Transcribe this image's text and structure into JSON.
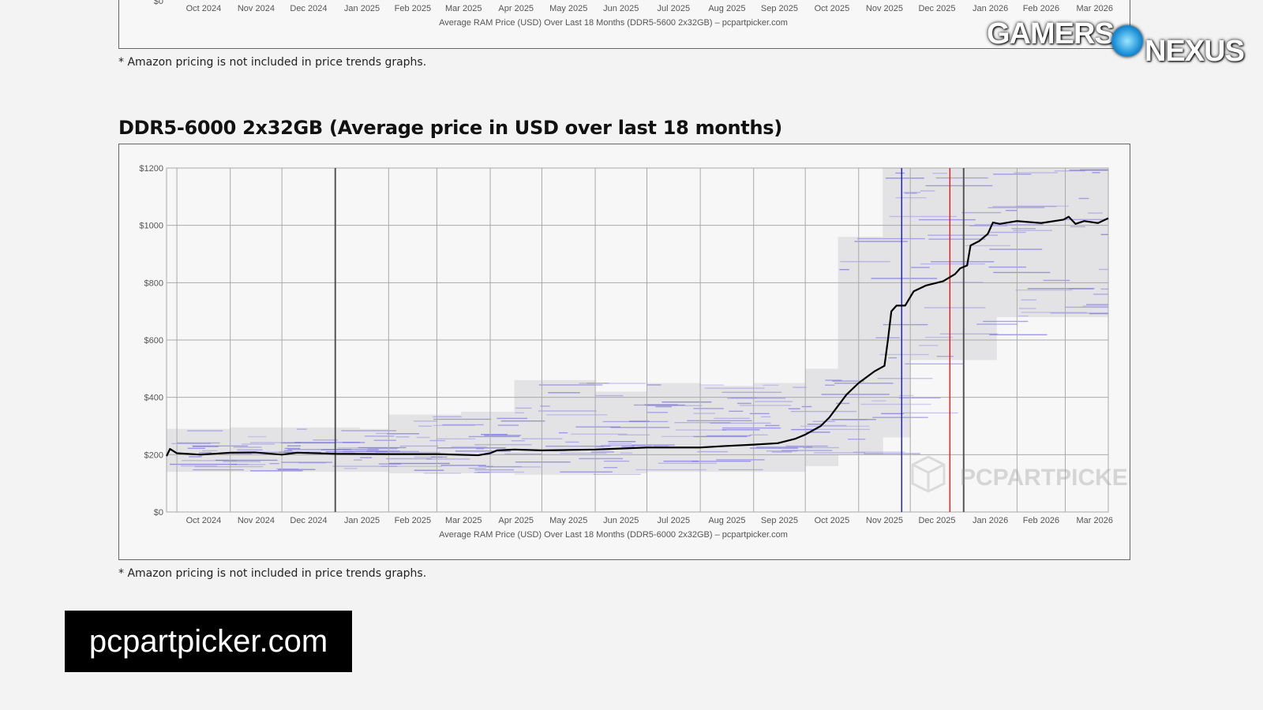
{
  "prev_chart": {
    "y_tick_visible": "$0",
    "x_ticks": [
      "Oct 2024",
      "Nov 2024",
      "Dec 2024",
      "Jan 2025",
      "Feb 2025",
      "Mar 2025",
      "Apr 2025",
      "May 2025",
      "Jun 2025",
      "Jul 2025",
      "Aug 2025",
      "Sep 2025",
      "Oct 2025",
      "Nov 2025",
      "Dec 2025",
      "Jan 2026",
      "Feb 2026",
      "Mar 2026"
    ],
    "caption": "Average RAM Price (USD) Over Last 18 Months (DDR5-5600 2x32GB) – pcpartpicker.com",
    "footnote": "* Amazon pricing is not included in price trends graphs."
  },
  "section": {
    "title": "DDR5-6000 2x32GB (Average price in USD over last 18 months)",
    "footnote": "* Amazon pricing is not included in price trends graphs."
  },
  "source_banner": "pcpartpicker.com",
  "logo": {
    "left": "GAMERS",
    "right": "NEXUS"
  },
  "watermark": "PCPARTPICKER",
  "chart_data": {
    "type": "line",
    "title": "",
    "xlabel": "Average RAM Price (USD) Over Last 18 Months (DDR5-6000 2x32GB) – pcpartpicker.com",
    "ylabel": "",
    "xlim": [
      "2024-09-25",
      "2026-03-26"
    ],
    "ylim": [
      0,
      1200
    ],
    "grid": true,
    "y_ticks": [
      0,
      200,
      400,
      600,
      800,
      1000,
      1200
    ],
    "y_tick_labels": [
      "$0",
      "$200",
      "$400",
      "$600",
      "$800",
      "$1000",
      "$1200"
    ],
    "x_ticks": [
      "2024-10-01",
      "2024-11-01",
      "2024-12-01",
      "2025-01-01",
      "2025-02-01",
      "2025-03-01",
      "2025-04-01",
      "2025-05-01",
      "2025-06-01",
      "2025-07-01",
      "2025-08-01",
      "2025-09-01",
      "2025-10-01",
      "2025-11-01",
      "2025-12-01",
      "2026-01-01",
      "2026-02-01",
      "2026-03-01"
    ],
    "x_tick_labels": [
      "Oct 2024",
      "Nov 2024",
      "Dec 2024",
      "Jan 2025",
      "Feb 2025",
      "Mar 2025",
      "Apr 2025",
      "May 2025",
      "Jun 2025",
      "Jul 2025",
      "Aug 2025",
      "Sep 2025",
      "Oct 2025",
      "Nov 2025",
      "Dec 2025",
      "Jan 2026",
      "Feb 2026",
      "Mar 2026"
    ],
    "year_lines": [
      "2025-01-01",
      "2026-01-01"
    ],
    "markers": [
      {
        "date": "2025-11-26",
        "color": "#2222cc"
      },
      {
        "date": "2025-12-24",
        "color": "#dd2222"
      }
    ],
    "colors": {
      "average": "#000000",
      "range": "#e3e3e5",
      "retailer": "#6a5fe0"
    },
    "average_price": [
      [
        "2024-09-25",
        195
      ],
      [
        "2024-09-27",
        220
      ],
      [
        "2024-10-01",
        205
      ],
      [
        "2024-10-15",
        200
      ],
      [
        "2024-11-01",
        207
      ],
      [
        "2024-11-15",
        208
      ],
      [
        "2024-12-01",
        200
      ],
      [
        "2024-12-10",
        207
      ],
      [
        "2025-01-01",
        203
      ],
      [
        "2025-02-01",
        202
      ],
      [
        "2025-03-01",
        202
      ],
      [
        "2025-03-25",
        198
      ],
      [
        "2025-04-01",
        205
      ],
      [
        "2025-04-05",
        215
      ],
      [
        "2025-04-15",
        218
      ],
      [
        "2025-05-01",
        215
      ],
      [
        "2025-06-01",
        218
      ],
      [
        "2025-07-01",
        225
      ],
      [
        "2025-08-01",
        225
      ],
      [
        "2025-08-15",
        230
      ],
      [
        "2025-09-01",
        235
      ],
      [
        "2025-09-15",
        240
      ],
      [
        "2025-09-25",
        255
      ],
      [
        "2025-10-01",
        270
      ],
      [
        "2025-10-10",
        300
      ],
      [
        "2025-10-15",
        330
      ],
      [
        "2025-10-20",
        370
      ],
      [
        "2025-10-25",
        410
      ],
      [
        "2025-11-01",
        450
      ],
      [
        "2025-11-10",
        490
      ],
      [
        "2025-11-16",
        510
      ],
      [
        "2025-11-18",
        600
      ],
      [
        "2025-11-20",
        700
      ],
      [
        "2025-11-23",
        720
      ],
      [
        "2025-11-28",
        720
      ],
      [
        "2025-12-03",
        770
      ],
      [
        "2025-12-10",
        790
      ],
      [
        "2025-12-20",
        805
      ],
      [
        "2025-12-27",
        830
      ],
      [
        "2025-12-30",
        850
      ],
      [
        "2026-01-03",
        860
      ],
      [
        "2026-01-05",
        930
      ],
      [
        "2026-01-10",
        945
      ],
      [
        "2026-01-15",
        970
      ],
      [
        "2026-01-18",
        1010
      ],
      [
        "2026-01-22",
        1005
      ],
      [
        "2026-02-01",
        1015
      ],
      [
        "2026-02-15",
        1008
      ],
      [
        "2026-02-28",
        1020
      ],
      [
        "2026-03-03",
        1030
      ],
      [
        "2026-03-07",
        1005
      ],
      [
        "2026-03-12",
        1015
      ],
      [
        "2026-03-20",
        1008
      ],
      [
        "2026-03-26",
        1025
      ]
    ],
    "price_range": [
      [
        "2024-09-25",
        140,
        290
      ],
      [
        "2024-11-01",
        140,
        295
      ],
      [
        "2025-01-15",
        140,
        290
      ],
      [
        "2025-02-01",
        135,
        340
      ],
      [
        "2025-03-15",
        135,
        350
      ],
      [
        "2025-04-15",
        130,
        460
      ],
      [
        "2025-06-01",
        135,
        420
      ],
      [
        "2025-07-01",
        140,
        450
      ],
      [
        "2025-08-01",
        140,
        440
      ],
      [
        "2025-09-01",
        140,
        450
      ],
      [
        "2025-10-01",
        160,
        500
      ],
      [
        "2025-10-20",
        200,
        960
      ],
      [
        "2025-11-15",
        260,
        1200
      ],
      [
        "2025-12-01",
        530,
        1200
      ],
      [
        "2026-01-15",
        530,
        1200
      ],
      [
        "2026-01-20",
        680,
        1200
      ],
      [
        "2026-03-26",
        620,
        1200
      ]
    ]
  }
}
